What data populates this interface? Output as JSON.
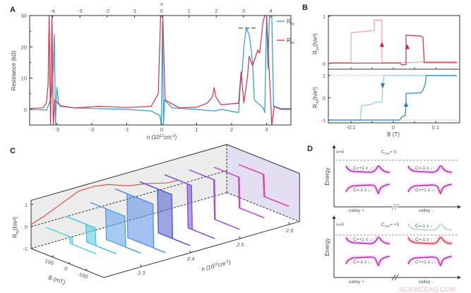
{
  "figure": {
    "panel_labels": {
      "A": "A",
      "B": "B",
      "C": "C",
      "D": "D"
    },
    "watermark": "SCIENCEAQ.COM"
  },
  "chart_data": [
    {
      "panel": "A",
      "type": "line",
      "ylabel": "Resistance (kΩ)",
      "xlabel": {
        "pre": "n (10",
        "exp1": "12",
        "mid": "cm",
        "exp2": "-2",
        "post": ")"
      },
      "top_axis_symbol": "ν",
      "xlim": [
        -3.8,
        3.7
      ],
      "ylim": [
        -5,
        30
      ],
      "x_ticks": [
        "-3",
        "-2",
        "-1",
        "0",
        "1",
        "2",
        "3"
      ],
      "top_ticks": [
        "-4",
        "-3",
        "-2",
        "-1",
        "0",
        "1",
        "2",
        "3",
        "4"
      ],
      "y_ticks": [
        "0",
        "10",
        "20",
        "30"
      ],
      "legend_position": "top-right",
      "series": [
        {
          "name": "R",
          "sub": "xy",
          "color": "#2a9ad8",
          "points": [
            [
              -3.8,
              0
            ],
            [
              -3.3,
              -0.2
            ],
            [
              -3.18,
              3
            ],
            [
              -3.15,
              5
            ],
            [
              -3.1,
              13
            ],
            [
              -3.07,
              24
            ],
            [
              -3.04,
              -5
            ],
            [
              -3.0,
              7
            ],
            [
              -2.95,
              2
            ],
            [
              -2.9,
              1
            ],
            [
              -2.5,
              0.5
            ],
            [
              -1,
              0
            ],
            [
              -0.3,
              -0.5
            ],
            [
              -0.05,
              -2
            ],
            [
              -0.01,
              -5
            ],
            [
              0.02,
              28
            ],
            [
              0.05,
              -5
            ],
            [
              0.08,
              3
            ],
            [
              0.3,
              0.5
            ],
            [
              1,
              0
            ],
            [
              1.5,
              -0.5
            ],
            [
              1.7,
              0
            ],
            [
              2.2,
              -1
            ],
            [
              2.25,
              8
            ],
            [
              2.3,
              12
            ],
            [
              2.35,
              20
            ],
            [
              2.42,
              26
            ],
            [
              2.5,
              24
            ],
            [
              2.55,
              20
            ],
            [
              2.6,
              15
            ],
            [
              2.65,
              3
            ],
            [
              2.75,
              2
            ],
            [
              2.9,
              0.5
            ],
            [
              2.95,
              -1
            ],
            [
              3.0,
              30
            ],
            [
              3.04,
              13
            ],
            [
              3.08,
              30
            ],
            [
              3.15,
              30
            ],
            [
              3.2,
              1
            ],
            [
              3.4,
              0
            ],
            [
              3.7,
              0
            ]
          ]
        },
        {
          "name": "R",
          "sub": "xx",
          "color": "#d0304a",
          "points": [
            [
              -3.8,
              0.3
            ],
            [
              -3.4,
              0.5
            ],
            [
              -3.3,
              2
            ],
            [
              -3.25,
              8
            ],
            [
              -3.22,
              30
            ],
            [
              -3.18,
              -5
            ],
            [
              -3.14,
              30
            ],
            [
              -3.1,
              -5
            ],
            [
              -3.06,
              3
            ],
            [
              -2.9,
              1.2
            ],
            [
              -2.5,
              0.5
            ],
            [
              -1.8,
              1
            ],
            [
              -1,
              0.6
            ],
            [
              -0.3,
              1
            ],
            [
              -0.1,
              5
            ],
            [
              -0.03,
              30
            ],
            [
              0.03,
              30
            ],
            [
              0.1,
              3
            ],
            [
              0.5,
              0.5
            ],
            [
              1.0,
              0.7
            ],
            [
              1.3,
              2
            ],
            [
              1.45,
              4
            ],
            [
              1.5,
              7
            ],
            [
              1.55,
              4
            ],
            [
              1.7,
              1.5
            ],
            [
              2.0,
              1.8
            ],
            [
              2.2,
              2
            ],
            [
              2.27,
              12
            ],
            [
              2.35,
              2
            ],
            [
              2.45,
              10
            ],
            [
              2.5,
              17
            ],
            [
              2.6,
              14
            ],
            [
              2.75,
              19
            ],
            [
              2.8,
              18
            ],
            [
              2.9,
              28
            ],
            [
              2.95,
              30
            ],
            [
              3.0,
              30
            ],
            [
              3.15,
              -5
            ],
            [
              3.22,
              1
            ],
            [
              3.4,
              0.3
            ],
            [
              3.7,
              0.2
            ]
          ]
        }
      ],
      "reference_line": {
        "y": 26,
        "x_range": [
          2.2,
          2.7
        ],
        "style": "dashed"
      }
    },
    {
      "panel": "B",
      "type": "line",
      "xlabel": "B (T)",
      "xlim": [
        -0.15,
        0.15
      ],
      "x_ticks": [
        "-0.1",
        "0",
        "0.1"
      ],
      "subplots": [
        {
          "ylabel": {
            "base": "R",
            "sub": "xx",
            "unit": "(h/e²)"
          },
          "ylim": [
            -0.05,
            1.02
          ],
          "y_ticks": [
            "0",
            "1"
          ],
          "series": [
            {
              "color": "#f0a0a8",
              "points": [
                [
                  -0.15,
                  0.02
                ],
                [
                  -0.1,
                  0.02
                ],
                [
                  -0.1,
                  0.65
                ],
                [
                  -0.08,
                  0.67
                ],
                [
                  -0.045,
                  0.7
                ],
                [
                  -0.045,
                  0.92
                ],
                [
                  -0.027,
                  0.92
                ],
                [
                  -0.027,
                  0.02
                ],
                [
                  0.03,
                  0.02
                ],
                [
                  0.075,
                  0.04
                ],
                [
                  0.15,
                  0.04
                ]
              ]
            },
            {
              "color": "#c8303c",
              "points": [
                [
                  -0.15,
                  0.01
                ],
                [
                  0.015,
                  0.01
                ],
                [
                  0.02,
                  -0.03
                ],
                [
                  0.03,
                  -0.02
                ],
                [
                  0.03,
                  0.6
                ],
                [
                  0.065,
                  0.58
                ],
                [
                  0.07,
                  0.55
                ],
                [
                  0.073,
                  0.02
                ],
                [
                  0.15,
                  0.02
                ]
              ]
            }
          ],
          "arrows": [
            {
              "b": -0.027,
              "r": 0.4,
              "dir": "up",
              "color": "#c8202c"
            },
            {
              "b": 0.033,
              "r": 0.35,
              "dir": "up",
              "color": "#c8202c"
            }
          ]
        },
        {
          "ylabel": {
            "base": "R",
            "sub": "xy",
            "unit": "(h/e²)"
          },
          "ylim": [
            -1.1,
            1.1
          ],
          "y_ticks": [
            "-1",
            "0",
            "1"
          ],
          "series": [
            {
              "color": "#8cc8e8",
              "points": [
                [
                  0.15,
                  1
                ],
                [
                  -0.022,
                  1
                ],
                [
                  -0.025,
                  0.55
                ],
                [
                  -0.027,
                  -0.2
                ],
                [
                  -0.045,
                  -0.2
                ],
                [
                  -0.05,
                  -0.3
                ],
                [
                  -0.075,
                  -0.35
                ],
                [
                  -0.078,
                  -1
                ],
                [
                  -0.15,
                  -1
                ]
              ]
            },
            {
              "color": "#1e88c8",
              "points": [
                [
                  -0.15,
                  -1
                ],
                [
                  0.015,
                  -1
                ],
                [
                  0.02,
                  -0.85
                ],
                [
                  0.028,
                  -0.8
                ],
                [
                  0.03,
                  -0.35
                ],
                [
                  0.03,
                  0.2
                ],
                [
                  0.065,
                  0.22
                ],
                [
                  0.07,
                  0.35
                ],
                [
                  0.075,
                  0.6
                ],
                [
                  0.078,
                  1
                ],
                [
                  0.15,
                  1
                ]
              ]
            }
          ],
          "arrows": [
            {
              "b": -0.025,
              "r": 0.55,
              "dir": "down",
              "color": "#1e78b8"
            },
            {
              "b": 0.03,
              "r": -0.3,
              "dir": "up",
              "color": "#1e78b8"
            }
          ],
          "dotted_lines": [
            {
              "y": 1,
              "x_range": [
                -0.15,
                -0.02
              ]
            },
            {
              "y": -1,
              "x_range": [
                0.02,
                0.15
              ]
            }
          ]
        }
      ]
    },
    {
      "panel": "C",
      "type": "line",
      "zlabel": {
        "base": "R",
        "sub": "xy",
        "unit": "(h/e²)"
      },
      "xlabel": {
        "pre": "n (10",
        "exp1": "12",
        "mid": "cm",
        "exp2": "-2",
        "post": ")"
      },
      "ylabel": "B (mT)",
      "n_ticks": [
        "2.3",
        "2.4",
        "2.5",
        "2.6"
      ],
      "B_ticks": [
        "100",
        "0",
        "-100"
      ],
      "R_ticks": [
        "1",
        "0",
        "-1"
      ],
      "back_wall_curve": {
        "color": "#e04848",
        "points": [
          [
            2.224,
            0.1
          ],
          [
            2.25,
            0.3
          ],
          [
            2.27,
            0.5
          ],
          [
            2.28,
            0.6
          ],
          [
            2.3,
            0.8
          ],
          [
            2.32,
            1.0
          ],
          [
            2.35,
            1.02
          ],
          [
            2.38,
            0.92
          ],
          [
            2.42,
            0.6
          ],
          [
            2.46,
            0.45
          ],
          [
            2.5,
            0.22
          ],
          [
            2.52,
            0.2
          ]
        ]
      },
      "traces": [
        {
          "n": 2.23,
          "amp": 0.15,
          "coercive": 10,
          "color": "#5fd3e0"
        },
        {
          "n": 2.27,
          "amp": 0.4,
          "coercive": 30,
          "color": "#4cc6e0"
        },
        {
          "n": 2.32,
          "amp": 0.7,
          "coercive": 60,
          "color": "#5aa0e6"
        },
        {
          "n": 2.37,
          "amp": 1.0,
          "coercive": 80,
          "color": "#5a8ee6"
        },
        {
          "n": 2.42,
          "amp": 1.0,
          "coercive": 45,
          "color": "#4a5cd0"
        },
        {
          "n": 2.47,
          "amp": 1.0,
          "coercive": 12,
          "color": "#7a50d6"
        },
        {
          "n": 2.52,
          "amp": 0.9,
          "coercive": 4,
          "color": "#9a56d8"
        },
        {
          "n": 2.57,
          "amp": 0.7,
          "coercive": 4,
          "color": "#c04cc8"
        },
        {
          "n": 2.62,
          "amp": 0.5,
          "coercive": 4,
          "color": "#e0479c"
        }
      ]
    }
  ],
  "panel_d": {
    "ylabel": "Energy",
    "top": {
      "nu": "ν=4",
      "c_base": "C",
      "c_sub": "total",
      "c_val": "= 0",
      "bands": [
        "C=+1 x ↓↑",
        "C=-1 x ↓↑",
        "C=-1 x ↓↑",
        "C=+1 x ↓↑"
      ],
      "x_labels": [
        "valley +",
        "valley -"
      ]
    },
    "bottom": {
      "nu": "ν=3",
      "c_base": "C",
      "c_sub": "total",
      "c_val": "= +1",
      "bands": [
        "C=-1 x ↓",
        "C=+1 x ↓↑",
        "C=-1 x ↑",
        "C=-1 x ↓↑",
        "C=+1 x ↓↑"
      ],
      "x_labels": [
        "valley +",
        "valley -"
      ]
    },
    "colors": {
      "band": "#9a2a9a",
      "glow": "#f2b8ee",
      "red_band": "#d03848",
      "light_band": "#a8c4e0"
    }
  }
}
